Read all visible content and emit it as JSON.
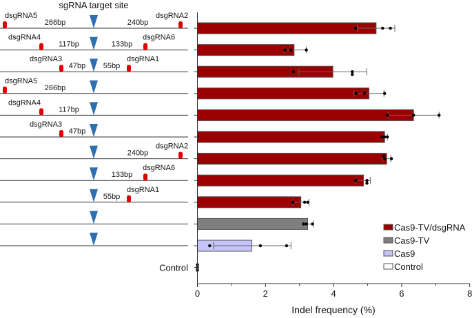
{
  "chart_data": {
    "type": "bar",
    "orientation": "horizontal",
    "diagram_title": "sgRNA target site",
    "xlabel": "Indel frequency (%)",
    "xlim": [
      0,
      8
    ],
    "xticks": [
      "0",
      "2",
      "4",
      "6",
      "8"
    ],
    "colors": {
      "Cas9-TV/dsgRNA": "#9b0000",
      "Cas9-TV": "#7f7f7f",
      "Cas9": "#c4c4fb",
      "Control": "#ffffff"
    },
    "legend": {
      "position": "bottom-right",
      "entries": [
        "Cas9-TV/dsgRNA",
        "Cas9-TV",
        "Cas9",
        "Control"
      ]
    },
    "rows": [
      {
        "group": "Cas9-TV/dsgRNA",
        "value": 5.25,
        "err": [
          4.7,
          5.8
        ],
        "points": [
          4.65,
          5.44,
          5.67
        ],
        "guides": [
          {
            "name": "dsgRNA5",
            "side": "left",
            "dist": "266bp"
          },
          {
            "name": "dsgRNA2",
            "side": "right",
            "dist": "240bp"
          }
        ]
      },
      {
        "group": "Cas9-TV/dsgRNA",
        "value": 2.84,
        "err": [
          2.55,
          3.2
        ],
        "points": [
          2.57,
          2.75,
          3.2
        ],
        "guides": [
          {
            "name": "dsgRNA4",
            "side": "left",
            "dist": "117bp"
          },
          {
            "name": "dsgRNA6",
            "side": "right",
            "dist": "133bp"
          }
        ]
      },
      {
        "group": "Cas9-TV/dsgRNA",
        "value": 3.98,
        "err": [
          2.98,
          4.97
        ],
        "points": [
          2.82,
          4.55,
          4.55
        ],
        "guides": [
          {
            "name": "dsgRNA3",
            "side": "left",
            "dist": "47bp"
          },
          {
            "name": "dsgRNA1",
            "side": "right",
            "dist": "55bp"
          }
        ]
      },
      {
        "group": "Cas9-TV/dsgRNA",
        "value": 5.04,
        "err": [
          4.6,
          5.48
        ],
        "points": [
          4.66,
          4.91,
          5.5
        ],
        "guides": [
          {
            "name": "dsgRNA5",
            "side": "left",
            "dist": "266bp"
          }
        ]
      },
      {
        "group": "Cas9-TV/dsgRNA",
        "value": 6.35,
        "err": [
          5.6,
          7.1
        ],
        "points": [
          5.58,
          6.35,
          7.1
        ],
        "guides": [
          {
            "name": "dsgRNA4",
            "side": "left",
            "dist": "117bp"
          }
        ]
      },
      {
        "group": "Cas9-TV/dsgRNA",
        "value": 5.5,
        "err": [
          5.42,
          5.58
        ],
        "points": [
          5.42,
          5.5,
          5.58
        ],
        "guides": [
          {
            "name": "dsgRNA3",
            "side": "left",
            "dist": "47bp"
          }
        ]
      },
      {
        "group": "Cas9-TV/dsgRNA",
        "value": 5.56,
        "err": [
          5.45,
          5.68
        ],
        "points": [
          5.47,
          5.5,
          5.7
        ],
        "guides": [
          {
            "name": "dsgRNA2",
            "side": "right",
            "dist": "240bp"
          }
        ]
      },
      {
        "group": "Cas9-TV/dsgRNA",
        "value": 4.88,
        "err": [
          4.65,
          5.08
        ],
        "points": [
          4.65,
          4.98,
          4.98
        ],
        "guides": [
          {
            "name": "dsgRNA6",
            "side": "right",
            "dist": "133bp"
          }
        ]
      },
      {
        "group": "Cas9-TV/dsgRNA",
        "value": 3.04,
        "err": [
          2.8,
          3.28
        ],
        "points": [
          2.8,
          3.15,
          3.24
        ],
        "guides": [
          {
            "name": "dsgRNA1",
            "side": "right",
            "dist": "55bp"
          }
        ]
      },
      {
        "group": "Cas9-TV",
        "value": 3.24,
        "err": [
          3.1,
          3.4
        ],
        "points": [
          3.12,
          3.2,
          3.38
        ],
        "guides": []
      },
      {
        "group": "Cas9",
        "value": 1.6,
        "err": [
          0.47,
          2.75
        ],
        "points": [
          0.36,
          1.85,
          2.62
        ],
        "guides": []
      },
      {
        "group": "Control",
        "label": "Control",
        "value": 0,
        "err": [
          0,
          0
        ],
        "points": [
          0,
          0,
          0
        ],
        "guides": null
      }
    ]
  }
}
